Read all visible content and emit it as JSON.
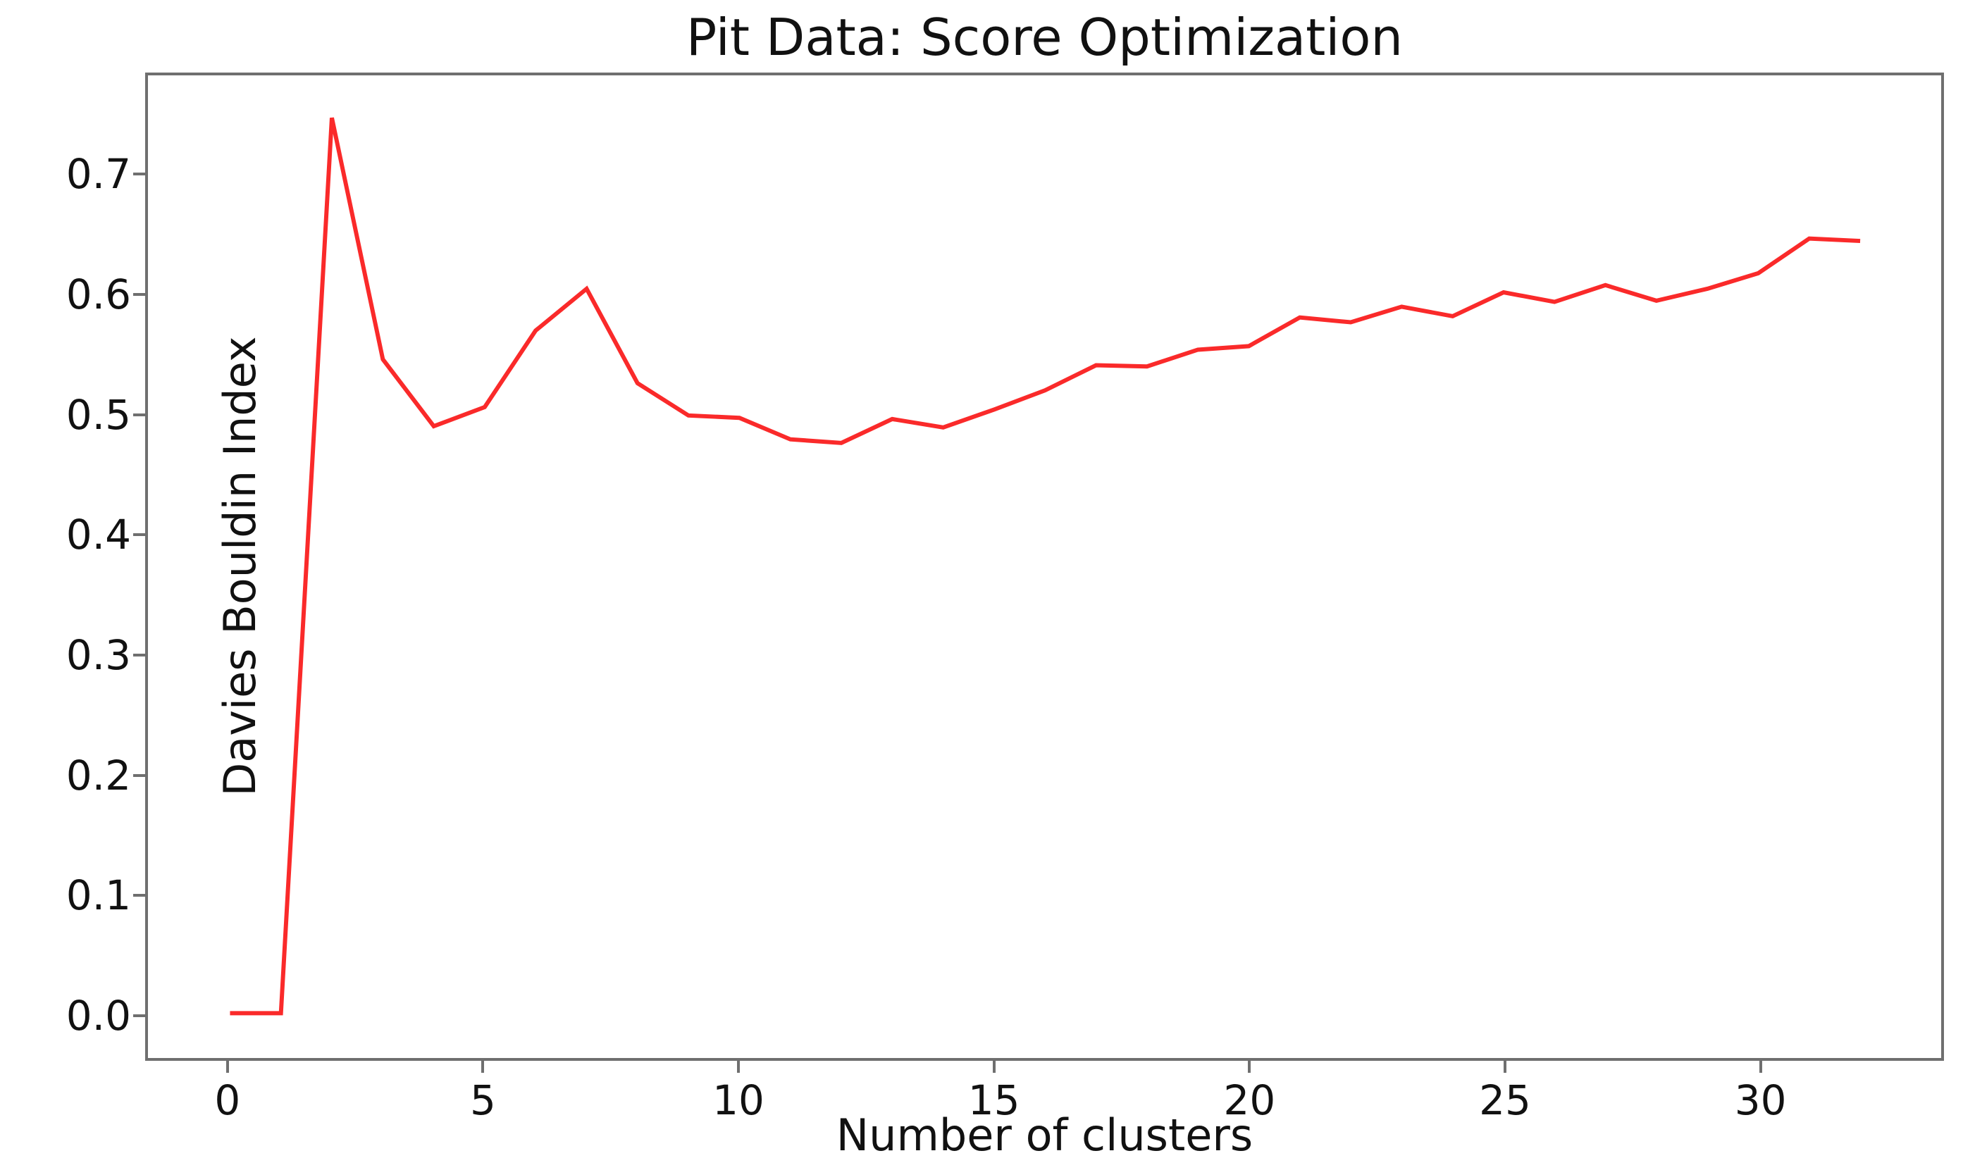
{
  "figure": {
    "title": "Pit Data: Score Optimization",
    "xlabel": "Number of clusters",
    "ylabel": "Davies Bouldin Index"
  },
  "chart_data": {
    "type": "line",
    "title": "Pit Data: Score Optimization",
    "xlabel": "Number of clusters",
    "ylabel": "Davies Bouldin Index",
    "grid": false,
    "legend": "none",
    "line_color": "#fa2a2a",
    "xlim": [
      -1.61,
      33.59
    ],
    "ylim": [
      -0.0375,
      0.7845
    ],
    "x_tick_values": [
      0,
      5,
      10,
      15,
      20,
      25,
      30
    ],
    "x_tick_labels": [
      "0",
      "5",
      "10",
      "15",
      "20",
      "25",
      "30"
    ],
    "y_tick_values": [
      0.0,
      0.1,
      0.2,
      0.3,
      0.4,
      0.5,
      0.6,
      0.7
    ],
    "y_tick_labels": [
      "0.0",
      "0.1",
      "0.2",
      "0.3",
      "0.4",
      "0.5",
      "0.6",
      "0.7"
    ],
    "series": [
      {
        "name": "Davies Bouldin Index",
        "x": [
          0,
          1,
          2,
          3,
          4,
          5,
          6,
          7,
          8,
          9,
          10,
          11,
          12,
          13,
          14,
          15,
          16,
          17,
          18,
          19,
          20,
          21,
          22,
          23,
          24,
          25,
          26,
          27,
          28,
          29,
          30,
          31,
          32
        ],
        "y": [
          0.0,
          0.0,
          0.749,
          0.547,
          0.491,
          0.507,
          0.571,
          0.606,
          0.527,
          0.5,
          0.498,
          0.48,
          0.477,
          0.497,
          0.49,
          0.505,
          0.521,
          0.542,
          0.541,
          0.555,
          0.558,
          0.582,
          0.578,
          0.591,
          0.583,
          0.603,
          0.595,
          0.609,
          0.596,
          0.606,
          0.619,
          0.648,
          0.646
        ]
      }
    ]
  }
}
